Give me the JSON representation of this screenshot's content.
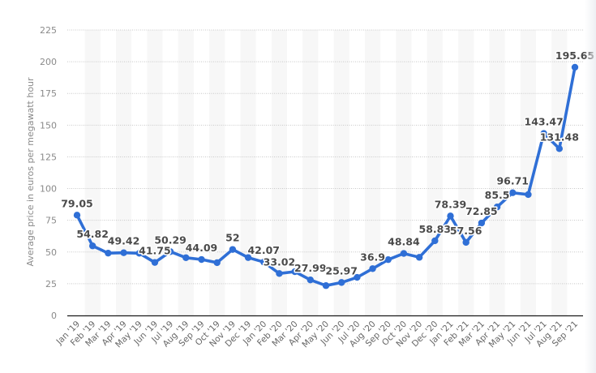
{
  "chart_data": {
    "type": "line",
    "title": "",
    "xlabel": "",
    "ylabel": "Average price in euros per megawatt hour",
    "ylim": [
      0,
      225
    ],
    "yticks": [
      0,
      25,
      50,
      75,
      100,
      125,
      150,
      175,
      200,
      225
    ],
    "grid": true,
    "legend": null,
    "line_color": "#2f6fd6",
    "categories": [
      "Jan '19",
      "Feb '19",
      "Mar '19",
      "Apr '19",
      "May '19",
      "Jun '19",
      "Jul '19",
      "Aug '19",
      "Sep '19",
      "Oct '19",
      "Nov '19",
      "Dec '19",
      "Jan '20",
      "Feb '20",
      "Mar '20",
      "Apr '20",
      "May '20",
      "Jun '20",
      "Jul '20",
      "Aug '20",
      "Sep '20",
      "Oct '20",
      "Nov '20",
      "Dec '20",
      "Jan '21",
      "Feb '21",
      "Mar '21",
      "Apr '21",
      "May '21",
      "Jun '21",
      "Jul '21",
      "Aug '21",
      "Sep '21"
    ],
    "series": [
      {
        "name": "Average price",
        "values": [
          79.05,
          54.82,
          49.1,
          49.42,
          49.0,
          41.75,
          50.29,
          45.5,
          44.09,
          41.6,
          52,
          45.6,
          42.07,
          33.02,
          34.5,
          27.99,
          23.5,
          25.97,
          30.0,
          36.9,
          44.0,
          48.84,
          45.8,
          58.83,
          78.39,
          57.56,
          72.85,
          85.5,
          96.71,
          95.3,
          143.47,
          131.48,
          195.65
        ],
        "labels": [
          "79.05",
          "54.82",
          "",
          "49.42",
          "",
          "41.75",
          "50.29",
          "",
          "44.09",
          "",
          "52",
          "",
          "42.07",
          "33.02",
          "",
          "27.99",
          "",
          "25.97",
          "",
          "36.9",
          "",
          "48.84",
          "",
          "58.83",
          "78.39",
          "57.56",
          "72.85",
          "85.5",
          "96.71",
          "",
          "143.47",
          "131.48",
          "195.65"
        ]
      }
    ]
  }
}
